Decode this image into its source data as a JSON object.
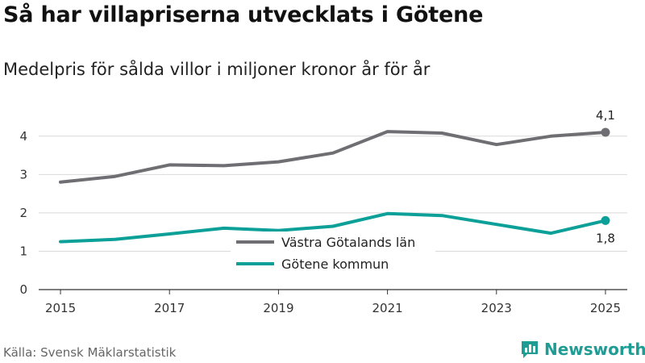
{
  "title": "Så har villapriserna utvecklats i Götene",
  "subtitle": "Medelpris för sålda villor i miljoner kronor år för år",
  "source": "Källa: Svensk Mäklarstatistik",
  "brand": {
    "name": "Newsworthy",
    "logo_icon": "bar-chart-speech-bubble-icon"
  },
  "colors": {
    "series_gray": "#6e6e73",
    "series_teal": "#0ca098",
    "grid": "#d9d9d9",
    "axis": "#333333"
  },
  "chart_data": {
    "type": "line",
    "x": [
      2015,
      2016,
      2017,
      2018,
      2019,
      2020,
      2021,
      2022,
      2023,
      2024,
      2025
    ],
    "xticks": [
      "2015",
      "2017",
      "2019",
      "2021",
      "2023",
      "2025"
    ],
    "yticks": [
      0,
      1,
      2,
      3,
      4
    ],
    "ylim": [
      0,
      4.5
    ],
    "xlim": [
      2014.6,
      2025.4
    ],
    "grid": true,
    "legend_position": "center",
    "series": [
      {
        "name": "Västra Götalands län",
        "color": "#6e6e73",
        "values": [
          2.8,
          2.95,
          3.25,
          3.23,
          3.33,
          3.56,
          4.12,
          4.08,
          3.78,
          4.0,
          4.1
        ],
        "end_label": "4,1",
        "end_label_position": "above"
      },
      {
        "name": "Götene kommun",
        "color": "#0ca098",
        "values": [
          1.25,
          1.31,
          1.45,
          1.6,
          1.54,
          1.65,
          1.98,
          1.93,
          1.7,
          1.47,
          1.8
        ],
        "end_label": "1,8",
        "end_label_position": "below"
      }
    ]
  }
}
